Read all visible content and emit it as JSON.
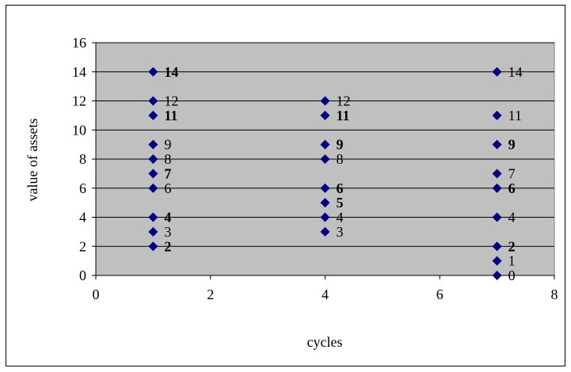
{
  "chart_data": {
    "type": "scatter",
    "title": "",
    "xlabel": "cycles",
    "ylabel": "value of assets",
    "xlim": [
      0,
      8
    ],
    "ylim": [
      0,
      16
    ],
    "x_ticks": [
      "0",
      "2",
      "4",
      "6",
      "8"
    ],
    "y_ticks": [
      "0",
      "2",
      "4",
      "6",
      "8",
      "10",
      "12",
      "14",
      "16"
    ],
    "grid": "horizontal",
    "legend": "none",
    "plot_background": "#c0c0c0",
    "marker_color": "#000080",
    "points": [
      {
        "x": 1,
        "y": 2,
        "label": "2",
        "bold": true
      },
      {
        "x": 1,
        "y": 3,
        "label": "3",
        "bold": false
      },
      {
        "x": 1,
        "y": 4,
        "label": "4",
        "bold": true
      },
      {
        "x": 1,
        "y": 6,
        "label": "6",
        "bold": false
      },
      {
        "x": 1,
        "y": 7,
        "label": "7",
        "bold": true
      },
      {
        "x": 1,
        "y": 8,
        "label": "8",
        "bold": false
      },
      {
        "x": 1,
        "y": 9,
        "label": "9",
        "bold": false
      },
      {
        "x": 1,
        "y": 11,
        "label": "11",
        "bold": true
      },
      {
        "x": 1,
        "y": 12,
        "label": "12",
        "bold": false
      },
      {
        "x": 1,
        "y": 14,
        "label": "14",
        "bold": true
      },
      {
        "x": 4,
        "y": 3,
        "label": "3",
        "bold": false
      },
      {
        "x": 4,
        "y": 4,
        "label": "4",
        "bold": false
      },
      {
        "x": 4,
        "y": 5,
        "label": "5",
        "bold": true
      },
      {
        "x": 4,
        "y": 6,
        "label": "6",
        "bold": true
      },
      {
        "x": 4,
        "y": 8,
        "label": "8",
        "bold": false
      },
      {
        "x": 4,
        "y": 9,
        "label": "9",
        "bold": true
      },
      {
        "x": 4,
        "y": 11,
        "label": "11",
        "bold": true
      },
      {
        "x": 4,
        "y": 12,
        "label": "12",
        "bold": false
      },
      {
        "x": 7,
        "y": 0,
        "label": "0",
        "bold": false
      },
      {
        "x": 7,
        "y": 1,
        "label": "1",
        "bold": false
      },
      {
        "x": 7,
        "y": 2,
        "label": "2",
        "bold": true
      },
      {
        "x": 7,
        "y": 4,
        "label": "4",
        "bold": false
      },
      {
        "x": 7,
        "y": 6,
        "label": "6",
        "bold": true
      },
      {
        "x": 7,
        "y": 7,
        "label": "7",
        "bold": false
      },
      {
        "x": 7,
        "y": 9,
        "label": "9",
        "bold": true
      },
      {
        "x": 7,
        "y": 11,
        "label": "11",
        "bold": false
      },
      {
        "x": 7,
        "y": 14,
        "label": "14",
        "bold": false
      }
    ]
  }
}
